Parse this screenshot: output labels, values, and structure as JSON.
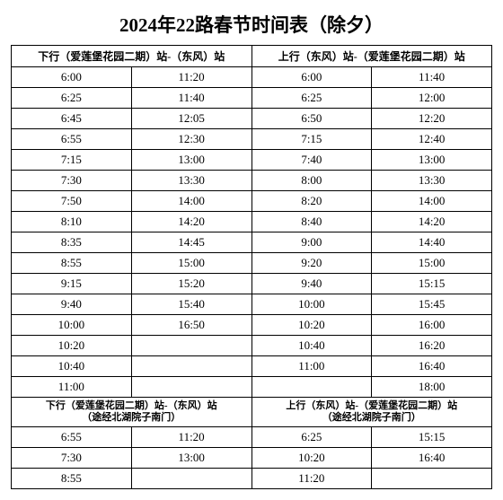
{
  "title": "2024年22路春节时间表（除夕）",
  "header1": {
    "down": "下行（爱莲堡花园二期）站-（东风）站",
    "up": "上行（东风）站-（爱莲堡花园二期）站"
  },
  "rows": [
    {
      "d1": "6:00",
      "d2": "11:20",
      "u1": "6:00",
      "u2": "11:40"
    },
    {
      "d1": "6:25",
      "d2": "11:40",
      "u1": "6:25",
      "u2": "12:00"
    },
    {
      "d1": "6:45",
      "d2": "12:05",
      "u1": "6:50",
      "u2": "12:20"
    },
    {
      "d1": "6:55",
      "d2": "12:30",
      "u1": "7:15",
      "u2": "12:40"
    },
    {
      "d1": "7:15",
      "d2": "13:00",
      "u1": "7:40",
      "u2": "13:00"
    },
    {
      "d1": "7:30",
      "d2": "13:30",
      "u1": "8:00",
      "u2": "13:30"
    },
    {
      "d1": "7:50",
      "d2": "14:00",
      "u1": "8:20",
      "u2": "14:00"
    },
    {
      "d1": "8:10",
      "d2": "14:20",
      "u1": "8:40",
      "u2": "14:20"
    },
    {
      "d1": "8:35",
      "d2": "14:45",
      "u1": "9:00",
      "u2": "14:40"
    },
    {
      "d1": "8:55",
      "d2": "15:00",
      "u1": "9:20",
      "u2": "15:00"
    },
    {
      "d1": "9:15",
      "d2": "15:20",
      "u1": "9:40",
      "u2": "15:15"
    },
    {
      "d1": "9:40",
      "d2": "15:40",
      "u1": "10:00",
      "u2": "15:45"
    },
    {
      "d1": "10:00",
      "d2": "16:50",
      "u1": "10:20",
      "u2": "16:00"
    },
    {
      "d1": "10:20",
      "d2": "",
      "u1": "10:40",
      "u2": "16:20"
    },
    {
      "d1": "10:40",
      "d2": "",
      "u1": "11:00",
      "u2": "16:40"
    },
    {
      "d1": "11:00",
      "d2": "",
      "u1": "",
      "u2": "18:00"
    }
  ],
  "header2": {
    "down": "下行（爱莲堡花园二期）站-（东风）站<br>（途经北湖院子南门）",
    "up": "上行（东风）站-（爱莲堡花园二期）站<br>（途经北湖院子南门）"
  },
  "rows2": [
    {
      "d1": "6:55",
      "d2": "11:20",
      "u1": "6:25",
      "u2": "15:15"
    },
    {
      "d1": "7:30",
      "d2": "13:00",
      "u1": "10:20",
      "u2": "16:40"
    },
    {
      "d1": "8:55",
      "d2": "",
      "u1": "11:20",
      "u2": ""
    }
  ]
}
